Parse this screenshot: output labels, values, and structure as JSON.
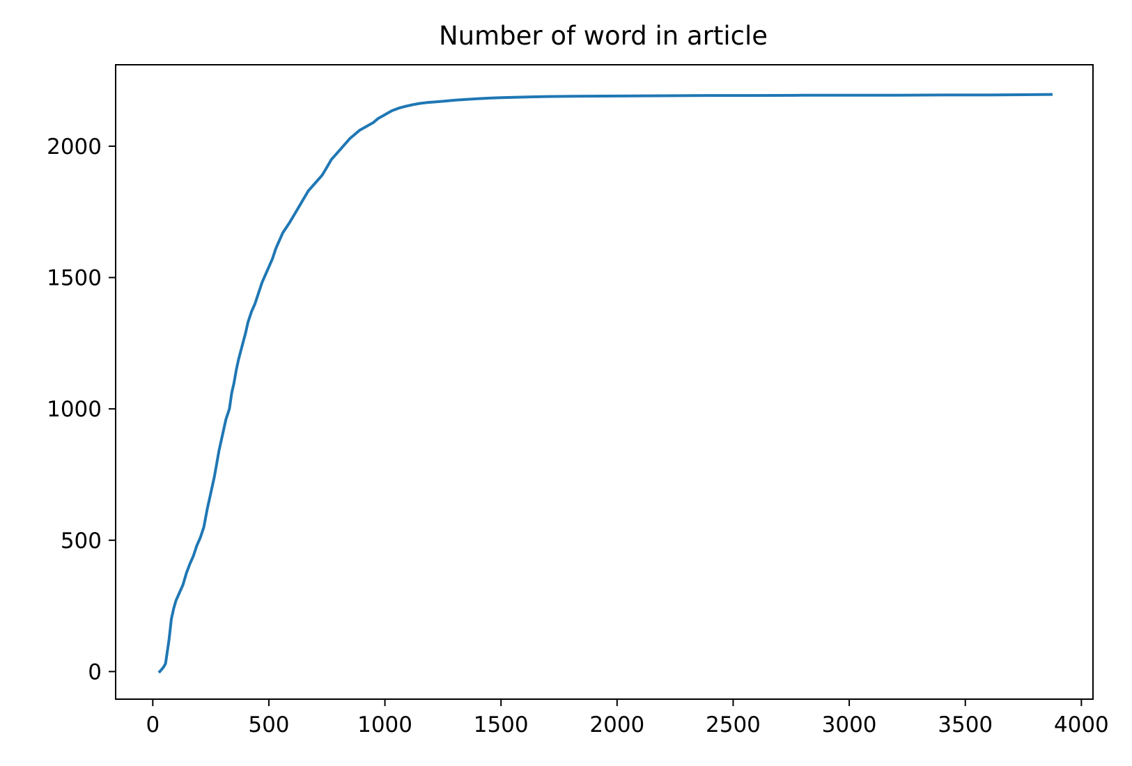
{
  "chart_data": {
    "type": "line",
    "title": "Number of word in article",
    "xlabel": "",
    "ylabel": "",
    "xlim": [
      -160,
      4050
    ],
    "ylim": [
      -105,
      2310
    ],
    "grid": false,
    "legend": "none",
    "colors": {
      "line": "#1f77b4",
      "axes": "#000000",
      "background": "#ffffff"
    },
    "x_ticks": [
      0,
      500,
      1000,
      1500,
      2000,
      2500,
      3000,
      3500,
      4000
    ],
    "x_tick_labels": [
      "0",
      "500",
      "1000",
      "1500",
      "2000",
      "2500",
      "3000",
      "3500",
      "4000"
    ],
    "y_ticks": [
      0,
      500,
      1000,
      1500,
      2000
    ],
    "y_tick_labels": [
      "0",
      "500",
      "1000",
      "1500",
      "2000"
    ],
    "series": [
      {
        "x": [
          30,
          45,
          55,
          70,
          80,
          90,
          100,
          115,
          130,
          145,
          160,
          175,
          190,
          205,
          220,
          235,
          250,
          265,
          275,
          285,
          300,
          315,
          330,
          340,
          350,
          360,
          370,
          385,
          400,
          410,
          425,
          440,
          455,
          470,
          485,
          500,
          515,
          530,
          545,
          560,
          575,
          590,
          610,
          630,
          650,
          670,
          690,
          710,
          730,
          750,
          770,
          790,
          810,
          830,
          850,
          870,
          890,
          910,
          930,
          950,
          970,
          990,
          1010,
          1030,
          1060,
          1090,
          1120,
          1150,
          1180,
          1220,
          1260,
          1300,
          1350,
          1400,
          1450,
          1500,
          1600,
          1700,
          1800,
          2000,
          2200,
          2400,
          2600,
          2800,
          3000,
          3200,
          3400,
          3600,
          3750,
          3870
        ],
        "y": [
          0,
          15,
          30,
          120,
          200,
          240,
          270,
          300,
          330,
          375,
          410,
          440,
          480,
          510,
          550,
          620,
          680,
          740,
          790,
          840,
          900,
          960,
          1000,
          1060,
          1100,
          1150,
          1190,
          1240,
          1290,
          1330,
          1370,
          1400,
          1440,
          1480,
          1510,
          1540,
          1570,
          1610,
          1640,
          1670,
          1690,
          1710,
          1740,
          1770,
          1800,
          1830,
          1850,
          1870,
          1890,
          1920,
          1950,
          1970,
          1990,
          2010,
          2030,
          2045,
          2060,
          2070,
          2080,
          2090,
          2105,
          2115,
          2125,
          2135,
          2145,
          2152,
          2158,
          2163,
          2166,
          2169,
          2172,
          2175,
          2178,
          2181,
          2183,
          2185,
          2187,
          2189,
          2190,
          2191,
          2192,
          2193,
          2193,
          2194,
          2194,
          2194,
          2195,
          2195,
          2196,
          2197
        ]
      }
    ]
  }
}
